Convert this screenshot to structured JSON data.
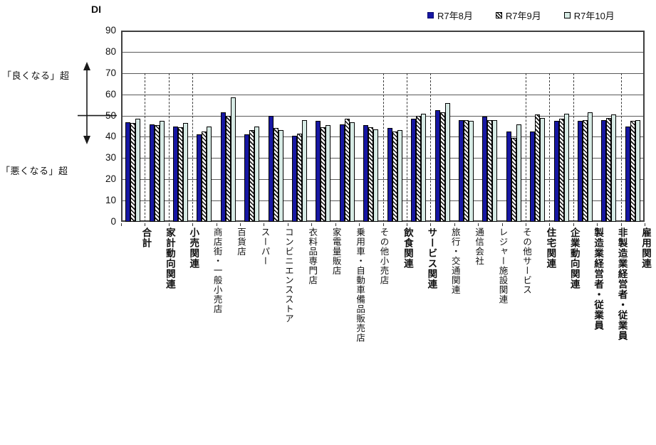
{
  "annotations": {
    "better": "「良くなる」超",
    "worse": "「悪くなる」超"
  },
  "colors": {
    "series_aug": "#1717a3",
    "series_sep_pattern": "black-diagonal-hatch-on-white",
    "series_oct": "#d7ebe5",
    "grid": "#5a5a5a",
    "plot_border": "#3f3f3f"
  },
  "chart_data": {
    "type": "bar",
    "title": "",
    "ylabel": "DI",
    "xlabel": "",
    "ylim": [
      0,
      90
    ],
    "y_ticks": [
      90,
      80,
      70,
      60,
      50,
      40,
      30,
      20,
      10,
      0
    ],
    "grid": true,
    "legend_position": "top-right",
    "left_axis_note_above_50": "「良くなる」超",
    "left_axis_note_below_50": "「悪くなる」超",
    "categories": [
      {
        "label": "合計",
        "bold": true
      },
      {
        "label": "家計動向関連",
        "bold": true
      },
      {
        "label": "小売関連",
        "bold": true
      },
      {
        "label": "商店街・一般小売店",
        "bold": false
      },
      {
        "label": "百貨店",
        "bold": false
      },
      {
        "label": "スーパー",
        "bold": false
      },
      {
        "label": "コンビニエンスストア",
        "bold": false
      },
      {
        "label": "衣料品専門店",
        "bold": false
      },
      {
        "label": "家電量販店",
        "bold": false
      },
      {
        "label": "乗用車・自動車備品販売店",
        "bold": false
      },
      {
        "label": "その他小売店",
        "bold": false
      },
      {
        "label": "飲食関連",
        "bold": true
      },
      {
        "label": "サービス関連",
        "bold": true
      },
      {
        "label": "旅行・交通関連",
        "bold": false
      },
      {
        "label": "通信会社",
        "bold": false
      },
      {
        "label": "レジャー施設関連",
        "bold": false
      },
      {
        "label": "その他サービス",
        "bold": false
      },
      {
        "label": "住宅関連",
        "bold": true
      },
      {
        "label": "企業動向関連",
        "bold": true
      },
      {
        "label": "製造業経営者・従業員",
        "bold": true
      },
      {
        "label": "非製造業経営者・従業員",
        "bold": true
      },
      {
        "label": "雇用関連",
        "bold": true
      }
    ],
    "series": [
      {
        "name": "R7年8月",
        "swatch": "solid",
        "values": [
          47.0,
          46.0,
          45.0,
          41.0,
          51.5,
          41.0,
          50.0,
          40.5,
          47.5,
          46.0,
          45.5,
          44.0,
          48.5,
          52.5,
          48.0,
          49.5,
          42.5,
          42.5,
          47.5,
          47.5,
          48.0,
          45.0
        ]
      },
      {
        "name": "R7年9月",
        "swatch": "hatch",
        "values": [
          46.5,
          45.5,
          44.5,
          42.5,
          50.0,
          43.0,
          44.0,
          41.5,
          44.5,
          48.5,
          44.5,
          42.5,
          50.0,
          51.5,
          48.0,
          48.0,
          39.5,
          50.5,
          48.5,
          48.0,
          49.0,
          47.5
        ]
      },
      {
        "name": "R7年10月",
        "swatch": "pale",
        "values": [
          48.5,
          47.5,
          46.5,
          45.0,
          58.5,
          45.0,
          43.0,
          48.0,
          45.5,
          47.0,
          43.5,
          43.0,
          51.0,
          56.0,
          47.5,
          48.0,
          46.0,
          49.0,
          51.0,
          51.5,
          50.5,
          48.0
        ]
      }
    ],
    "separators_after_category_index": [
      0,
      1,
      2,
      10,
      11,
      12,
      16,
      17,
      18,
      20
    ]
  }
}
